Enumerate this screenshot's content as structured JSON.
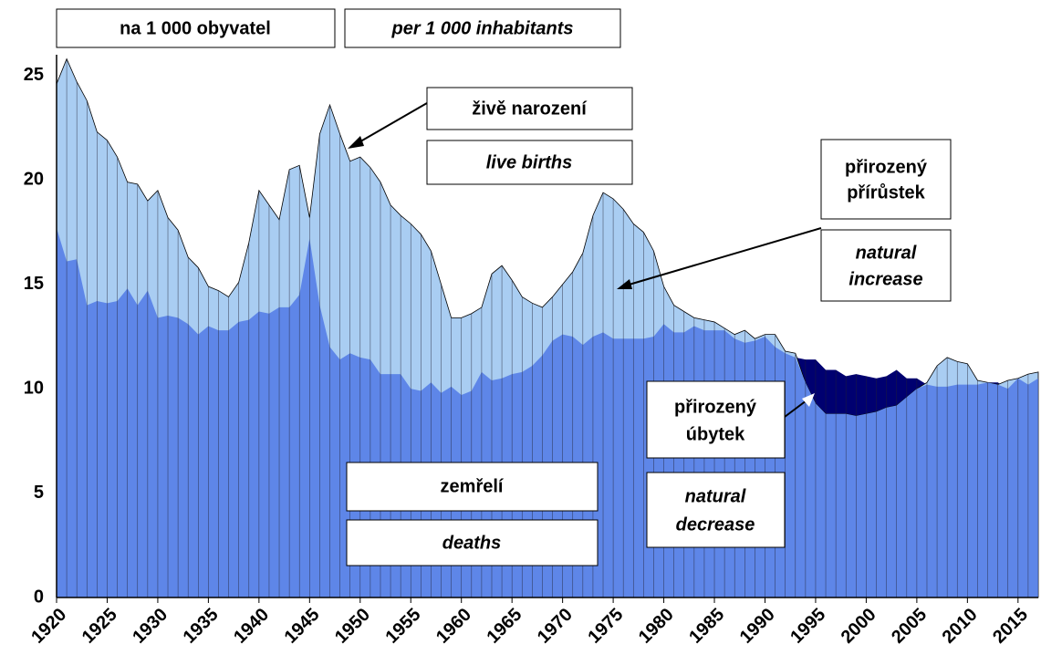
{
  "chart_data": {
    "type": "area",
    "unit_cz": "na 1 000 obyvatel",
    "unit_en": "per 1 000 inhabitants",
    "xlim": [
      1920,
      2017
    ],
    "xticks": [
      1920,
      1925,
      1930,
      1935,
      1940,
      1945,
      1950,
      1955,
      1960,
      1965,
      1970,
      1975,
      1980,
      1985,
      1990,
      1995,
      2000,
      2005,
      2010,
      2015
    ],
    "ylim": [
      0,
      26
    ],
    "yticks": [
      0,
      5,
      10,
      15,
      20,
      25
    ],
    "grid": true,
    "x": [
      1920,
      1921,
      1922,
      1923,
      1924,
      1925,
      1926,
      1927,
      1928,
      1929,
      1930,
      1931,
      1932,
      1933,
      1934,
      1935,
      1936,
      1937,
      1938,
      1939,
      1940,
      1941,
      1942,
      1943,
      1944,
      1945,
      1946,
      1947,
      1948,
      1949,
      1950,
      1951,
      1952,
      1953,
      1954,
      1955,
      1956,
      1957,
      1958,
      1959,
      1960,
      1961,
      1962,
      1963,
      1964,
      1965,
      1966,
      1967,
      1968,
      1969,
      1970,
      1971,
      1972,
      1973,
      1974,
      1975,
      1976,
      1977,
      1978,
      1979,
      1980,
      1981,
      1982,
      1983,
      1984,
      1985,
      1986,
      1987,
      1988,
      1989,
      1990,
      1991,
      1992,
      1993,
      1994,
      1995,
      1996,
      1997,
      1998,
      1999,
      2000,
      2001,
      2002,
      2003,
      2004,
      2005,
      2006,
      2007,
      2008,
      2009,
      2010,
      2011,
      2012,
      2013,
      2014,
      2015,
      2016,
      2017
    ],
    "series": [
      {
        "name": "živě narození",
        "name_en": "live births",
        "color": "#a9cdf2",
        "values": [
          24.6,
          25.8,
          24.7,
          23.8,
          22.3,
          21.9,
          21.1,
          19.9,
          19.8,
          19.0,
          19.5,
          18.2,
          17.6,
          16.3,
          15.8,
          14.9,
          14.7,
          14.4,
          15.1,
          17.0,
          19.5,
          18.8,
          18.1,
          20.5,
          20.7,
          18.2,
          22.2,
          23.6,
          22.2,
          20.9,
          21.1,
          20.6,
          19.9,
          18.8,
          18.3,
          17.9,
          17.4,
          16.6,
          15.0,
          13.4,
          13.4,
          13.6,
          13.9,
          15.5,
          15.9,
          15.2,
          14.4,
          14.1,
          13.9,
          14.4,
          15.0,
          15.6,
          16.5,
          18.3,
          19.4,
          19.1,
          18.6,
          17.9,
          17.5,
          16.6,
          14.9,
          14.0,
          13.7,
          13.4,
          13.3,
          13.2,
          12.9,
          12.6,
          12.8,
          12.4,
          12.6,
          12.6,
          11.8,
          11.7,
          10.3,
          9.3,
          8.8,
          8.8,
          8.8,
          8.7,
          8.8,
          8.9,
          9.1,
          9.2,
          9.6,
          10.0,
          10.3,
          11.1,
          11.5,
          11.3,
          11.2,
          10.4,
          10.3,
          10.2,
          10.4,
          10.5,
          10.7,
          10.8
        ]
      },
      {
        "name": "zemřelí",
        "name_en": "deaths",
        "color": "#5e86e8",
        "values": [
          17.7,
          16.1,
          16.2,
          14.0,
          14.2,
          14.1,
          14.2,
          14.8,
          14.0,
          14.7,
          13.4,
          13.5,
          13.4,
          13.1,
          12.6,
          13.0,
          12.8,
          12.8,
          13.2,
          13.3,
          13.7,
          13.6,
          13.9,
          13.9,
          14.5,
          17.2,
          14.0,
          12.0,
          11.4,
          11.7,
          11.5,
          11.4,
          10.7,
          10.7,
          10.7,
          10.0,
          9.9,
          10.3,
          9.8,
          10.1,
          9.7,
          9.9,
          10.8,
          10.4,
          10.5,
          10.7,
          10.8,
          11.1,
          11.6,
          12.3,
          12.6,
          12.5,
          12.1,
          12.5,
          12.7,
          12.4,
          12.4,
          12.4,
          12.4,
          12.5,
          13.1,
          12.7,
          12.7,
          13.0,
          12.8,
          12.8,
          12.8,
          12.4,
          12.2,
          12.3,
          12.5,
          12.0,
          11.7,
          11.5,
          11.4,
          11.4,
          10.9,
          10.9,
          10.6,
          10.7,
          10.6,
          10.5,
          10.6,
          10.9,
          10.5,
          10.5,
          10.2,
          10.1,
          10.1,
          10.2,
          10.2,
          10.2,
          10.3,
          10.3,
          10.0,
          10.5,
          10.2,
          10.5
        ]
      }
    ],
    "increase": {
      "lines": [
        "přirozený",
        "přírůstek"
      ],
      "lines_en": [
        "natural",
        "increase"
      ]
    },
    "decrease": {
      "lines": [
        "přirozený",
        "úbytek"
      ],
      "lines_en": [
        "natural",
        "decrease"
      ],
      "color": "#000070"
    }
  }
}
